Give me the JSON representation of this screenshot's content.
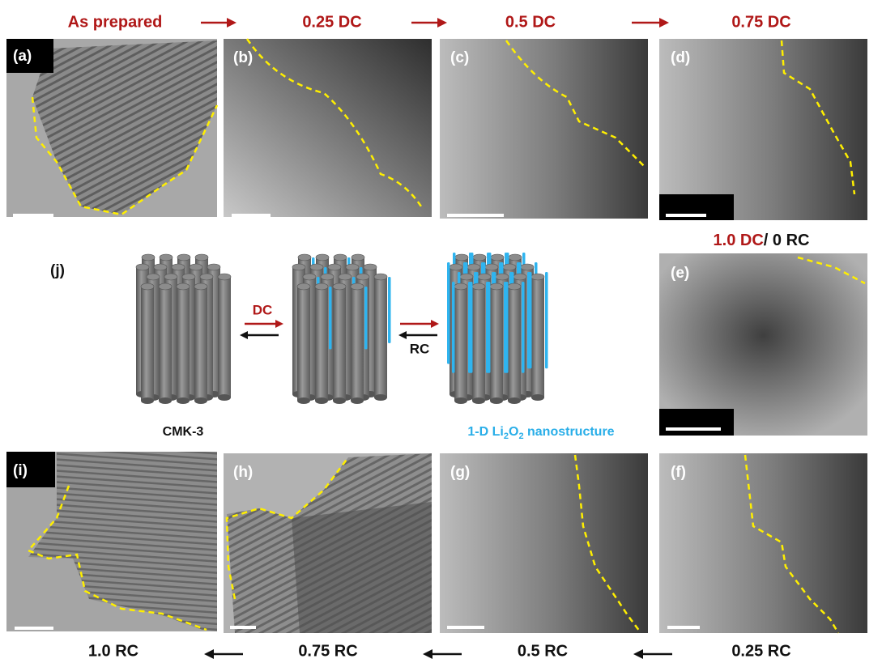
{
  "stages_top": [
    "As prepared",
    "0.25 DC",
    "0.5 DC",
    "0.75 DC"
  ],
  "stage_right": {
    "discharge": "1.0 DC",
    "recharge": "/ 0 RC"
  },
  "stages_bottom": [
    "1.0 RC",
    "0.75 RC",
    "0.5 RC",
    "0.25 RC"
  ],
  "panels": [
    "(a)",
    "(b)",
    "(c)",
    "(d)",
    "(e)",
    "(f)",
    "(g)",
    "(h)",
    "(i)"
  ],
  "schematic": {
    "label": "(j)",
    "forward": "DC",
    "backward": "RC",
    "start_label": "CMK-3",
    "product_label": [
      "1-D Li",
      "2",
      "O",
      "2",
      " nanostructure"
    ]
  }
}
